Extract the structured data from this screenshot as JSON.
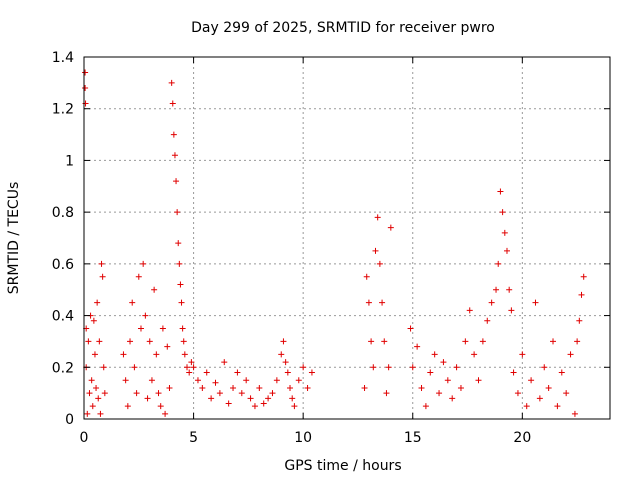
{
  "chart_data": {
    "type": "scatter",
    "title": "Day 299 of 2025, SRMTID for receiver pwro",
    "xlabel": "GPS time / hours",
    "ylabel": "SRMTID / TECUs",
    "xlim": [
      0,
      24
    ],
    "ylim": [
      0,
      1.4
    ],
    "x_ticks": [
      0,
      5,
      10,
      15,
      20
    ],
    "x_tick_labels": [
      "0",
      "5",
      "10",
      "15",
      "20"
    ],
    "y_ticks": [
      0,
      0.2,
      0.4,
      0.6,
      0.8,
      1,
      1.2,
      1.4
    ],
    "y_tick_labels": [
      "0",
      "0.2",
      "0.4",
      "0.6",
      "0.8",
      "1",
      "1.2",
      "1.4"
    ],
    "grid": true,
    "marker": "+",
    "series": [
      {
        "name": "SRMTID",
        "color": "#e00000",
        "x": [
          0.05,
          0.05,
          0.07,
          0.1,
          0.1,
          0.15,
          0.2,
          0.25,
          0.3,
          0.35,
          0.4,
          0.45,
          0.5,
          0.55,
          0.6,
          0.65,
          0.7,
          0.75,
          0.8,
          0.85,
          0.9,
          0.95,
          1.8,
          1.9,
          2.0,
          2.1,
          2.2,
          2.3,
          2.4,
          2.5,
          2.6,
          2.7,
          2.8,
          2.9,
          3.0,
          3.1,
          3.2,
          3.3,
          3.4,
          3.5,
          3.6,
          3.7,
          3.8,
          3.9,
          4.0,
          4.05,
          4.1,
          4.15,
          4.2,
          4.25,
          4.3,
          4.35,
          4.4,
          4.45,
          4.5,
          4.55,
          4.6,
          4.7,
          4.8,
          4.9,
          5.0,
          5.2,
          5.4,
          5.6,
          5.8,
          6.0,
          6.2,
          6.4,
          6.6,
          6.8,
          7.0,
          7.2,
          7.4,
          7.6,
          7.8,
          8.0,
          8.2,
          8.4,
          8.6,
          8.8,
          9.0,
          9.1,
          9.2,
          9.3,
          9.4,
          9.5,
          9.6,
          9.8,
          10.0,
          10.2,
          10.4,
          12.8,
          12.9,
          13.0,
          13.1,
          13.2,
          13.3,
          13.4,
          13.5,
          13.6,
          13.7,
          13.8,
          13.9,
          14.0,
          14.9,
          15.0,
          15.2,
          15.4,
          15.6,
          15.8,
          16.0,
          16.2,
          16.4,
          16.6,
          16.8,
          17.0,
          17.2,
          17.4,
          17.6,
          17.8,
          18.0,
          18.2,
          18.4,
          18.6,
          18.8,
          18.9,
          19.0,
          19.1,
          19.2,
          19.3,
          19.4,
          19.5,
          19.6,
          19.8,
          20.0,
          20.2,
          20.4,
          20.6,
          20.8,
          21.0,
          21.2,
          21.4,
          21.6,
          21.8,
          22.0,
          22.2,
          22.4,
          22.5,
          22.6,
          22.7,
          22.8
        ],
        "y": [
          1.34,
          1.28,
          1.22,
          0.35,
          0.2,
          0.02,
          0.3,
          0.1,
          0.4,
          0.15,
          0.05,
          0.38,
          0.25,
          0.12,
          0.45,
          0.08,
          0.3,
          0.02,
          0.6,
          0.55,
          0.2,
          0.1,
          0.25,
          0.15,
          0.05,
          0.3,
          0.45,
          0.2,
          0.1,
          0.55,
          0.35,
          0.6,
          0.4,
          0.08,
          0.3,
          0.15,
          0.5,
          0.25,
          0.1,
          0.05,
          0.35,
          0.02,
          0.28,
          0.12,
          1.3,
          1.22,
          1.1,
          1.02,
          0.92,
          0.8,
          0.68,
          0.6,
          0.52,
          0.45,
          0.35,
          0.3,
          0.25,
          0.2,
          0.18,
          0.22,
          0.2,
          0.15,
          0.12,
          0.18,
          0.08,
          0.14,
          0.1,
          0.22,
          0.06,
          0.12,
          0.18,
          0.1,
          0.15,
          0.08,
          0.05,
          0.12,
          0.06,
          0.08,
          0.1,
          0.15,
          0.25,
          0.3,
          0.22,
          0.18,
          0.12,
          0.08,
          0.05,
          0.15,
          0.2,
          0.12,
          0.18,
          0.12,
          0.55,
          0.45,
          0.3,
          0.2,
          0.65,
          0.78,
          0.6,
          0.45,
          0.3,
          0.1,
          0.2,
          0.74,
          0.35,
          0.2,
          0.28,
          0.12,
          0.05,
          0.18,
          0.25,
          0.1,
          0.22,
          0.15,
          0.08,
          0.2,
          0.12,
          0.3,
          0.42,
          0.25,
          0.15,
          0.3,
          0.38,
          0.45,
          0.5,
          0.6,
          0.88,
          0.8,
          0.72,
          0.65,
          0.5,
          0.42,
          0.18,
          0.1,
          0.25,
          0.05,
          0.15,
          0.45,
          0.08,
          0.2,
          0.12,
          0.3,
          0.05,
          0.18,
          0.1,
          0.25,
          0.02,
          0.3,
          0.38,
          0.48,
          0.55
        ]
      }
    ]
  }
}
